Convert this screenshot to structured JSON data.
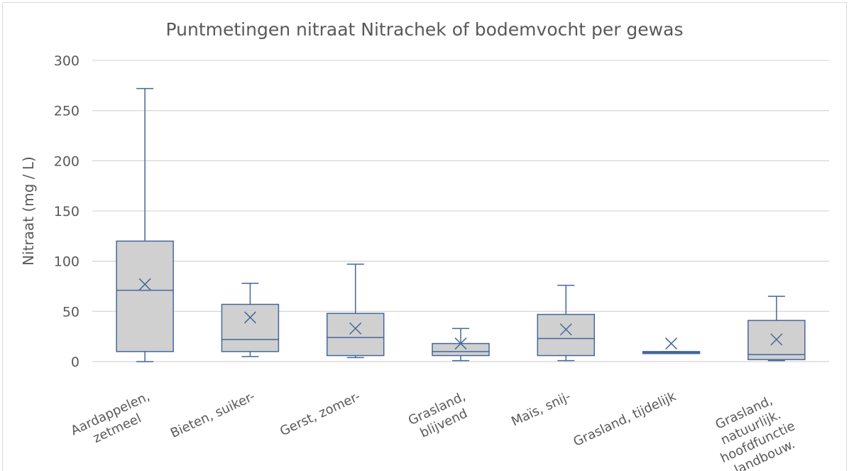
{
  "chart_data": {
    "type": "box",
    "title": "Puntmetingen nitraat Nitrachek of bodemvocht per gewas",
    "y_label": "Nitraat (mg / L)",
    "categories": [
      [
        "Aardappelen,",
        "zetmeel"
      ],
      [
        "Bieten, suiker-"
      ],
      [
        "Gerst, zomer-"
      ],
      [
        "Grasland,",
        "blijvend"
      ],
      [
        "Maïs, snij-"
      ],
      [
        "Grasland, tijdelijk"
      ],
      [
        "Grasland,",
        "natuurlijk.",
        "hoofdfunctie",
        "landbouw."
      ]
    ],
    "boxes": [
      {
        "min": 0,
        "q1": 10,
        "median": 71,
        "q3": 120,
        "max": 272,
        "mean": 77
      },
      {
        "min": 5,
        "q1": 10,
        "median": 22,
        "q3": 57,
        "max": 78,
        "mean": 44
      },
      {
        "min": 4,
        "q1": 6,
        "median": 24,
        "q3": 48,
        "max": 97,
        "mean": 33
      },
      {
        "min": 1,
        "q1": 6,
        "median": 10,
        "q3": 18,
        "max": 33,
        "mean": 18
      },
      {
        "min": 1,
        "q1": 6,
        "median": 23,
        "q3": 47,
        "max": 76,
        "mean": 32
      },
      {
        "min": 8,
        "q1": 8,
        "median": 9,
        "q3": 10,
        "max": 10,
        "mean": 18
      },
      {
        "min": 1,
        "q1": 2,
        "median": 7,
        "q3": 41,
        "max": 65,
        "mean": 22
      }
    ],
    "color": "#44679a",
    "fill": "#d0d0d0",
    "ylim": [
      0,
      300
    ],
    "yticks": [
      0,
      50,
      100,
      150,
      200,
      250,
      300
    ],
    "grid": true
  }
}
